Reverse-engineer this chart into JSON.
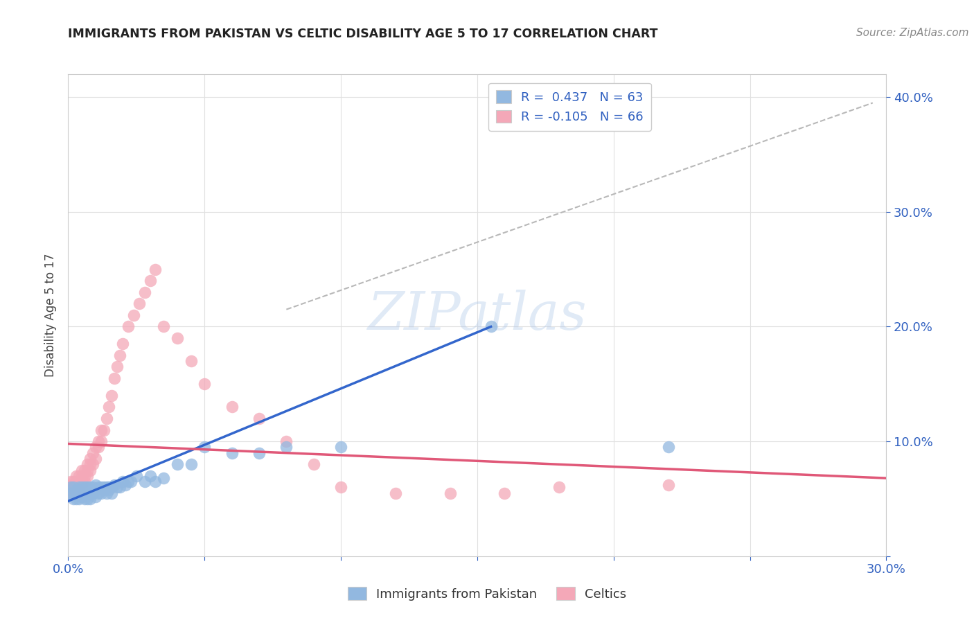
{
  "title": "IMMIGRANTS FROM PAKISTAN VS CELTIC DISABILITY AGE 5 TO 17 CORRELATION CHART",
  "source": "Source: ZipAtlas.com",
  "ylabel": "Disability Age 5 to 17",
  "xlim": [
    0.0,
    0.3
  ],
  "ylim": [
    0.0,
    0.42
  ],
  "xticks": [
    0.0,
    0.05,
    0.1,
    0.15,
    0.2,
    0.25,
    0.3
  ],
  "yticks": [
    0.0,
    0.1,
    0.2,
    0.3,
    0.4
  ],
  "blue_R": 0.437,
  "blue_N": 63,
  "pink_R": -0.105,
  "pink_N": 66,
  "blue_color": "#92b8e0",
  "pink_color": "#f4a8b8",
  "blue_line_color": "#3366cc",
  "pink_line_color": "#e05878",
  "dashed_line_color": "#b8b8b8",
  "watermark": "ZIPatlas",
  "legend_label_blue": "Immigrants from Pakistan",
  "legend_label_pink": "Celtics",
  "blue_scatter_x": [
    0.001,
    0.001,
    0.002,
    0.002,
    0.002,
    0.003,
    0.003,
    0.003,
    0.004,
    0.004,
    0.004,
    0.005,
    0.005,
    0.005,
    0.006,
    0.006,
    0.006,
    0.007,
    0.007,
    0.007,
    0.007,
    0.008,
    0.008,
    0.008,
    0.008,
    0.009,
    0.009,
    0.01,
    0.01,
    0.01,
    0.011,
    0.011,
    0.012,
    0.012,
    0.013,
    0.013,
    0.014,
    0.014,
    0.015,
    0.015,
    0.016,
    0.016,
    0.017,
    0.018,
    0.019,
    0.02,
    0.021,
    0.022,
    0.023,
    0.025,
    0.028,
    0.03,
    0.032,
    0.035,
    0.04,
    0.045,
    0.05,
    0.06,
    0.07,
    0.08,
    0.1,
    0.155,
    0.22
  ],
  "blue_scatter_y": [
    0.06,
    0.055,
    0.06,
    0.055,
    0.05,
    0.058,
    0.055,
    0.05,
    0.06,
    0.055,
    0.05,
    0.06,
    0.058,
    0.052,
    0.06,
    0.055,
    0.05,
    0.06,
    0.058,
    0.055,
    0.05,
    0.06,
    0.058,
    0.055,
    0.05,
    0.06,
    0.055,
    0.062,
    0.058,
    0.052,
    0.06,
    0.055,
    0.06,
    0.055,
    0.06,
    0.058,
    0.06,
    0.055,
    0.06,
    0.058,
    0.06,
    0.055,
    0.062,
    0.06,
    0.06,
    0.065,
    0.062,
    0.065,
    0.065,
    0.07,
    0.065,
    0.07,
    0.065,
    0.068,
    0.08,
    0.08,
    0.095,
    0.09,
    0.09,
    0.095,
    0.095,
    0.2,
    0.095
  ],
  "pink_scatter_x": [
    0.001,
    0.001,
    0.001,
    0.001,
    0.002,
    0.002,
    0.002,
    0.002,
    0.003,
    0.003,
    0.003,
    0.003,
    0.003,
    0.004,
    0.004,
    0.004,
    0.004,
    0.005,
    0.005,
    0.005,
    0.005,
    0.006,
    0.006,
    0.006,
    0.007,
    0.007,
    0.007,
    0.008,
    0.008,
    0.008,
    0.009,
    0.009,
    0.01,
    0.01,
    0.011,
    0.011,
    0.012,
    0.012,
    0.013,
    0.014,
    0.015,
    0.016,
    0.017,
    0.018,
    0.019,
    0.02,
    0.022,
    0.024,
    0.026,
    0.028,
    0.03,
    0.032,
    0.035,
    0.04,
    0.045,
    0.05,
    0.06,
    0.07,
    0.08,
    0.09,
    0.1,
    0.12,
    0.14,
    0.16,
    0.18,
    0.22
  ],
  "pink_scatter_y": [
    0.055,
    0.06,
    0.062,
    0.065,
    0.055,
    0.058,
    0.062,
    0.065,
    0.055,
    0.058,
    0.06,
    0.065,
    0.07,
    0.055,
    0.06,
    0.065,
    0.07,
    0.06,
    0.065,
    0.07,
    0.075,
    0.065,
    0.07,
    0.075,
    0.07,
    0.075,
    0.08,
    0.075,
    0.08,
    0.085,
    0.08,
    0.09,
    0.085,
    0.095,
    0.095,
    0.1,
    0.1,
    0.11,
    0.11,
    0.12,
    0.13,
    0.14,
    0.155,
    0.165,
    0.175,
    0.185,
    0.2,
    0.21,
    0.22,
    0.23,
    0.24,
    0.25,
    0.2,
    0.19,
    0.17,
    0.15,
    0.13,
    0.12,
    0.1,
    0.08,
    0.06,
    0.055,
    0.055,
    0.055,
    0.06,
    0.062
  ],
  "blue_trendline_x": [
    0.0,
    0.155
  ],
  "blue_trendline_y": [
    0.048,
    0.2
  ],
  "pink_trendline_x": [
    0.0,
    0.3
  ],
  "pink_trendline_y": [
    0.098,
    0.068
  ],
  "dashed_line_x": [
    0.08,
    0.295
  ],
  "dashed_line_y": [
    0.215,
    0.395
  ]
}
